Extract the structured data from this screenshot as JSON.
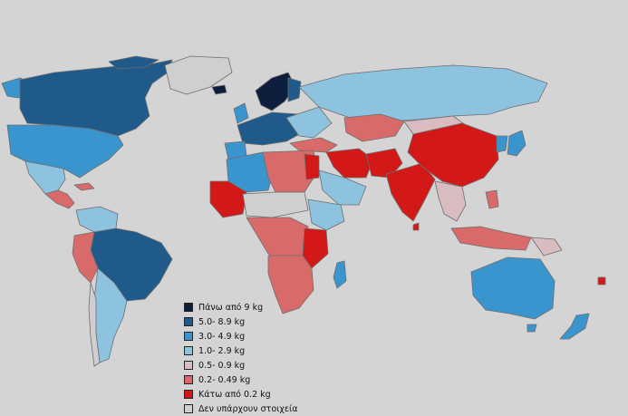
{
  "legend": [
    {
      "label": "Πάνω από 9 kg",
      "color": "#0d1f3c"
    },
    {
      "label": "5.0- 8.9 kg",
      "color": "#1f5a8a"
    },
    {
      "label": "3.0- 4.9 kg",
      "color": "#3a95cf"
    },
    {
      "label": "1.0- 2.9 kg",
      "color": "#8ec3e0"
    },
    {
      "label": "0.5- 0.9 kg",
      "color": "#d8bcc0"
    },
    {
      "label": "0.2- 0.49 kg",
      "color": "#d86a6a"
    },
    {
      "label": "Κάτω από 0.2 kg",
      "color": "#d31818"
    },
    {
      "label": "Δεν υπάρχουν στοιχεία",
      "color": "#cfcfcf"
    }
  ]
}
